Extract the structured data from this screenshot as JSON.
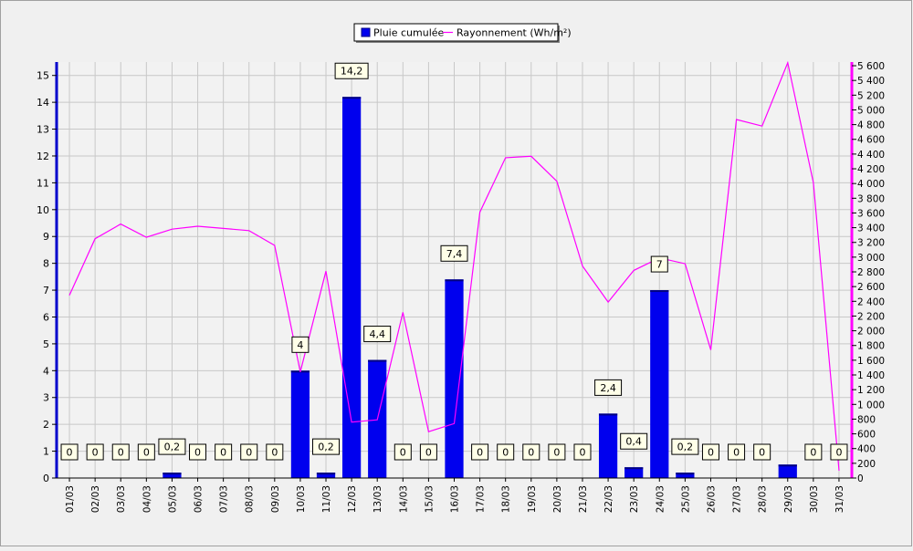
{
  "chart_data": {
    "type": "bar+line",
    "categories": [
      "01/03",
      "02/03",
      "03/03",
      "04/03",
      "05/03",
      "06/03",
      "07/03",
      "08/03",
      "09/03",
      "10/03",
      "11/03",
      "12/03",
      "13/03",
      "14/03",
      "15/03",
      "16/03",
      "17/03",
      "18/03",
      "19/03",
      "20/03",
      "21/03",
      "22/03",
      "23/03",
      "24/03",
      "25/03",
      "26/03",
      "27/03",
      "28/03",
      "29/03",
      "30/03",
      "31/03"
    ],
    "series": [
      {
        "name": "Pluie cumulée",
        "type": "bar",
        "axis": "left",
        "color": "#0000ee",
        "values": [
          0,
          0,
          0,
          0,
          0.2,
          0,
          0,
          0,
          0,
          4,
          0.2,
          14.2,
          4.4,
          0,
          0,
          7.4,
          0,
          0,
          0,
          0,
          0,
          2.4,
          0.4,
          7,
          0.2,
          0,
          0,
          0,
          0.5,
          0,
          0
        ],
        "labels": [
          "0",
          "0",
          "0",
          "0",
          "0,2",
          "0",
          "0",
          "0",
          "0",
          "4",
          "0,2",
          "14,2",
          "4,4",
          "0",
          "0",
          "7,4",
          "0",
          "0",
          "0",
          "0",
          "0",
          "2,4",
          "0,4",
          "7",
          "0,2",
          "0",
          "0",
          "0",
          "",
          "0",
          "0"
        ]
      },
      {
        "name": "Rayonnement (Wh/m²)",
        "type": "line",
        "axis": "right",
        "color": "#ff00ff",
        "values": [
          2480,
          3250,
          3450,
          3270,
          3380,
          3420,
          3390,
          3360,
          3160,
          1440,
          2810,
          760,
          790,
          2250,
          630,
          740,
          3610,
          4350,
          4370,
          4030,
          2880,
          2390,
          2820,
          2990,
          2910,
          1740,
          4870,
          4780,
          5640,
          4010,
          100
        ]
      }
    ],
    "y_left": {
      "ylim": [
        0,
        15.5
      ],
      "ticks": [
        "0",
        "1",
        "2",
        "3",
        "4",
        "5",
        "6",
        "7",
        "8",
        "9",
        "10",
        "11",
        "12",
        "13",
        "14",
        "15"
      ]
    },
    "y_right": {
      "ylim": [
        0,
        5650
      ],
      "ticks": [
        "0",
        "200",
        "400",
        "600",
        "800",
        "1 000",
        "1 200",
        "1 400",
        "1 600",
        "1 800",
        "2 000",
        "2 200",
        "2 400",
        "2 600",
        "2 800",
        "3 000",
        "3 200",
        "3 400",
        "3 600",
        "3 800",
        "4 000",
        "4 200",
        "4 400",
        "4 600",
        "4 800",
        "5 000",
        "5 200",
        "5 400",
        "5 600"
      ]
    },
    "grid": true,
    "legend": "top-center"
  }
}
